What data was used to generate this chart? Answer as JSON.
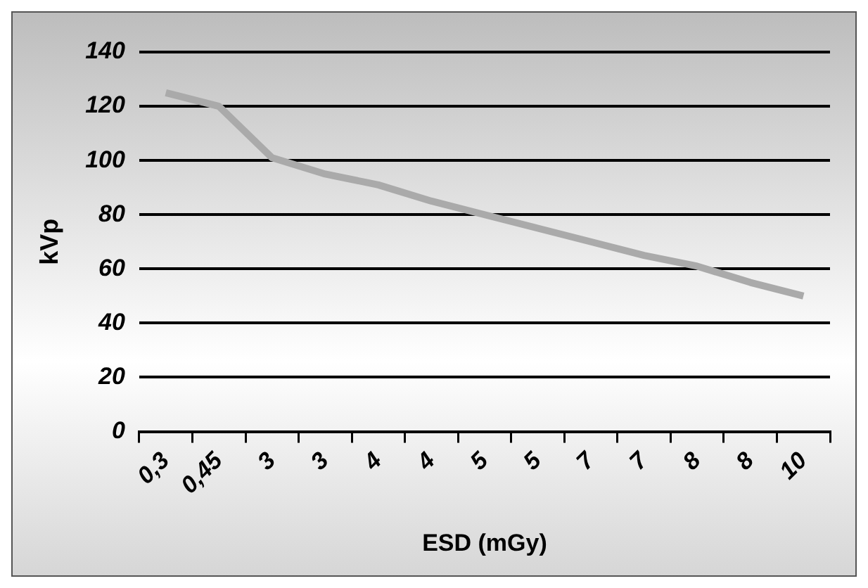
{
  "chart_data": {
    "type": "line",
    "xlabel": "ESD (mGy)",
    "ylabel": "kVp",
    "categories": [
      "0,3",
      "0,45",
      "3",
      "3",
      "4",
      "4",
      "5",
      "5",
      "7",
      "7",
      "8",
      "8",
      "10"
    ],
    "series": [
      {
        "color": "#aaaaaa",
        "values": [
          125,
          120,
          101,
          95,
          91,
          85,
          80,
          75,
          70,
          65,
          61,
          55,
          50
        ]
      }
    ],
    "ylim": [
      0,
      140
    ],
    "yticks": [
      0,
      20,
      40,
      60,
      80,
      100,
      120,
      140
    ],
    "grid": "y",
    "legend": false,
    "marker": "none",
    "line_style": "solid"
  }
}
